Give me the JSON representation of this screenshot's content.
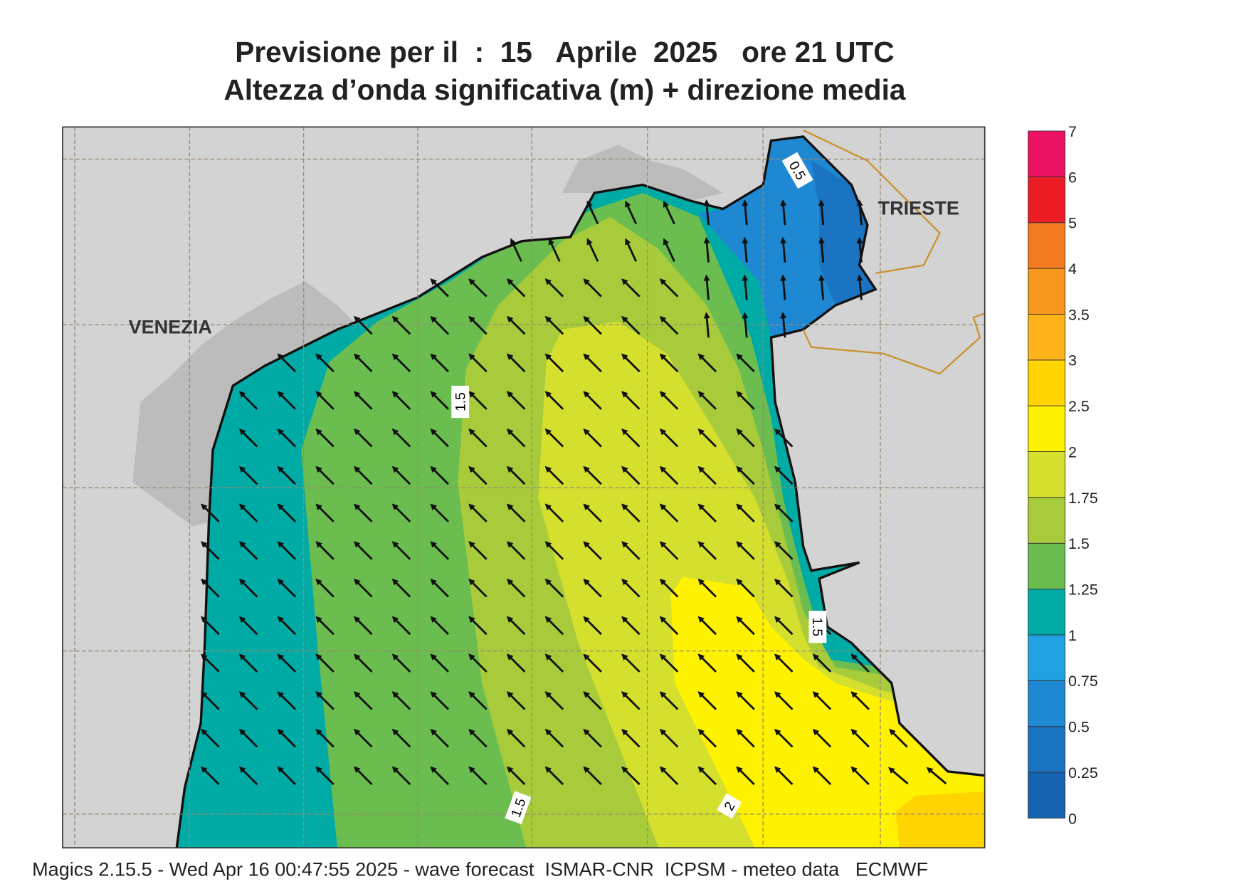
{
  "title": {
    "line1": "Previsione per il  :  15   Aprile  2025   ore 21 UTC",
    "line2": "Altezza d’onda significativa (m) + direzione media"
  },
  "map": {
    "places": [
      "VENEZIA",
      "TRIESTE"
    ],
    "contour_labels": [
      "1.5",
      "0.5",
      "1.5",
      "1.5",
      "2"
    ]
  },
  "colorbar": {
    "levels": [
      0,
      0.25,
      0.5,
      0.75,
      1,
      1.25,
      1.5,
      1.75,
      2,
      2.5,
      3,
      3.5,
      4,
      5,
      6,
      7
    ],
    "colors": [
      "#1462b0",
      "#1a74c2",
      "#1e89d2",
      "#22a2e2",
      "#00aba6",
      "#6bbd4f",
      "#a8cb3b",
      "#d5e02e",
      "#fff200",
      "#ffd400",
      "#ffb21a",
      "#f7961d",
      "#f47a20",
      "#ec1c24",
      "#ec1263"
    ]
  },
  "footer": "Magics 2.15.5 - Wed Apr 16 00:47:55 2025 - wave forecast  ISMAR-CNR  ICPSM - meteo data   ECMWF"
}
